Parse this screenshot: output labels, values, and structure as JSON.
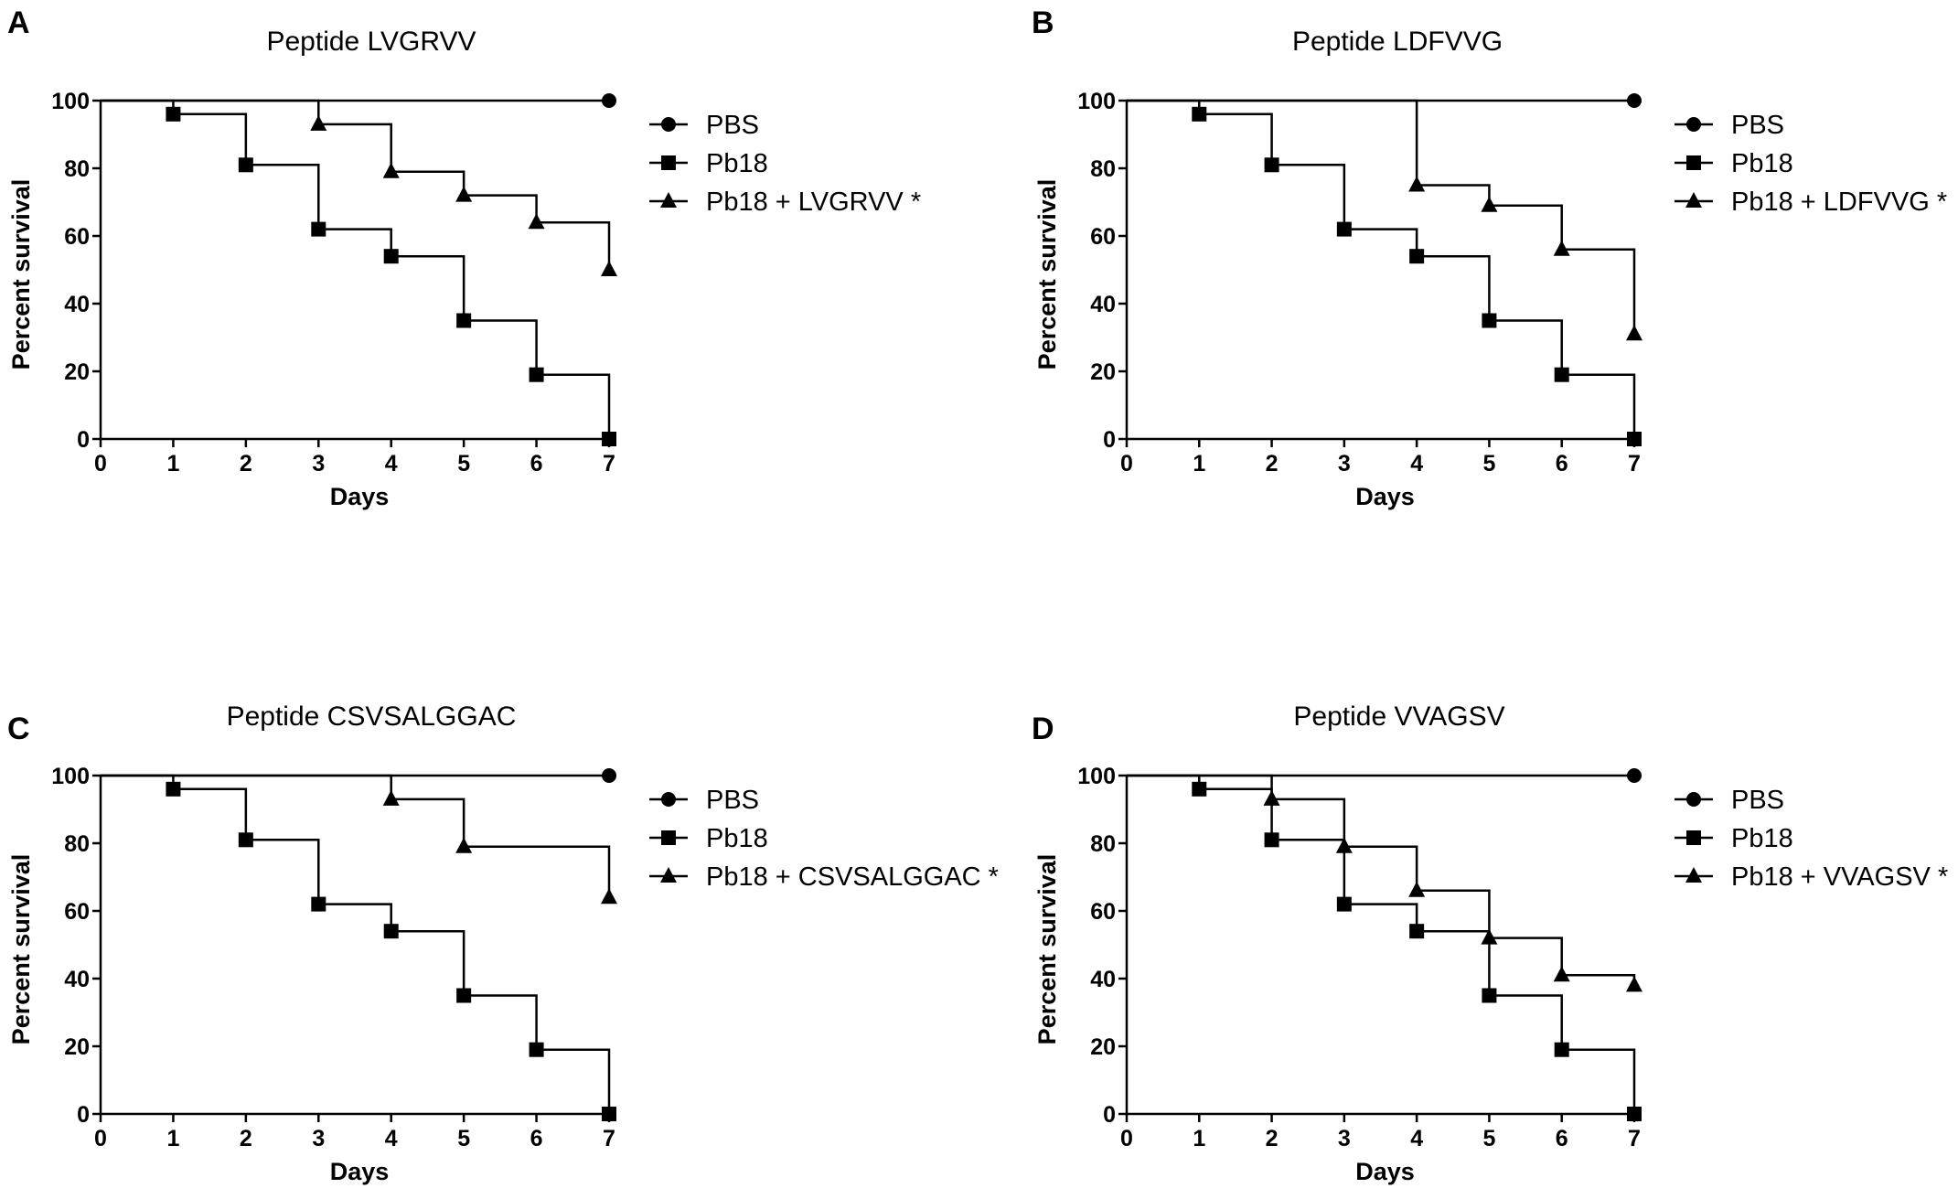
{
  "chart_data": [
    {
      "type": "line",
      "panel_label": "A",
      "title": "Peptide LVGRVV",
      "xlabel": "Days",
      "ylabel": "Percent survival",
      "xlim": [
        0,
        7
      ],
      "ylim": [
        0,
        100
      ],
      "xticks": [
        "0",
        "1",
        "2",
        "3",
        "4",
        "5",
        "6",
        "7"
      ],
      "yticks": [
        "0",
        "20",
        "40",
        "60",
        "80",
        "100"
      ],
      "legend_position": "right",
      "series": [
        {
          "name": "PBS",
          "marker": "circle",
          "x": [
            0,
            7
          ],
          "y": [
            100,
            100
          ]
        },
        {
          "name": "Pb18",
          "marker": "square",
          "x": [
            0,
            1,
            2,
            3,
            4,
            5,
            6,
            7
          ],
          "y": [
            100,
            96,
            81,
            62,
            54,
            35,
            19,
            0
          ]
        },
        {
          "name": "Pb18 + LVGRVV *",
          "marker": "triangle",
          "x": [
            0,
            3,
            4,
            5,
            6,
            7
          ],
          "y": [
            100,
            93,
            79,
            72,
            64,
            50
          ]
        }
      ]
    },
    {
      "type": "line",
      "panel_label": "B",
      "title": "Peptide LDFVVG",
      "xlabel": "Days",
      "ylabel": "Percent survival",
      "xlim": [
        0,
        7
      ],
      "ylim": [
        0,
        100
      ],
      "xticks": [
        "0",
        "1",
        "2",
        "3",
        "4",
        "5",
        "6",
        "7"
      ],
      "yticks": [
        "0",
        "20",
        "40",
        "60",
        "80",
        "100"
      ],
      "legend_position": "right",
      "series": [
        {
          "name": "PBS",
          "marker": "circle",
          "x": [
            0,
            7
          ],
          "y": [
            100,
            100
          ]
        },
        {
          "name": "Pb18",
          "marker": "square",
          "x": [
            0,
            1,
            2,
            3,
            4,
            5,
            6,
            7
          ],
          "y": [
            100,
            96,
            81,
            62,
            54,
            35,
            19,
            0
          ]
        },
        {
          "name": "Pb18 + LDFVVG *",
          "marker": "triangle",
          "x": [
            0,
            4,
            5,
            6,
            7
          ],
          "y": [
            100,
            75,
            69,
            56,
            31
          ]
        }
      ]
    },
    {
      "type": "line",
      "panel_label": "C",
      "title": "Peptide CSVSALGGAC",
      "xlabel": "Days",
      "ylabel": "Percent survival",
      "xlim": [
        0,
        7
      ],
      "ylim": [
        0,
        100
      ],
      "xticks": [
        "0",
        "1",
        "2",
        "3",
        "4",
        "5",
        "6",
        "7"
      ],
      "yticks": [
        "0",
        "20",
        "40",
        "60",
        "80",
        "100"
      ],
      "legend_position": "right",
      "series": [
        {
          "name": "PBS",
          "marker": "circle",
          "x": [
            0,
            7
          ],
          "y": [
            100,
            100
          ]
        },
        {
          "name": "Pb18",
          "marker": "square",
          "x": [
            0,
            1,
            2,
            3,
            4,
            5,
            6,
            7
          ],
          "y": [
            100,
            96,
            81,
            62,
            54,
            35,
            19,
            0
          ]
        },
        {
          "name": "Pb18 + CSVSALGGAC *",
          "marker": "triangle",
          "x": [
            0,
            4,
            5,
            7
          ],
          "y": [
            100,
            93,
            79,
            64
          ]
        }
      ]
    },
    {
      "type": "line",
      "panel_label": "D",
      "title": "Peptide VVAGSV",
      "xlabel": "Days",
      "ylabel": "Percent survival",
      "xlim": [
        0,
        7
      ],
      "ylim": [
        0,
        100
      ],
      "xticks": [
        "0",
        "1",
        "2",
        "3",
        "4",
        "5",
        "6",
        "7"
      ],
      "yticks": [
        "0",
        "20",
        "40",
        "60",
        "80",
        "100"
      ],
      "legend_position": "right",
      "series": [
        {
          "name": "PBS",
          "marker": "circle",
          "x": [
            0,
            7
          ],
          "y": [
            100,
            100
          ]
        },
        {
          "name": "Pb18",
          "marker": "square",
          "x": [
            0,
            1,
            2,
            3,
            4,
            5,
            6,
            7
          ],
          "y": [
            100,
            96,
            81,
            62,
            54,
            35,
            19,
            0
          ]
        },
        {
          "name": "Pb18 + VVAGSV *",
          "marker": "triangle",
          "x": [
            0,
            2,
            3,
            4,
            5,
            6,
            7
          ],
          "y": [
            100,
            93,
            79,
            66,
            52,
            41,
            38
          ]
        }
      ]
    }
  ]
}
